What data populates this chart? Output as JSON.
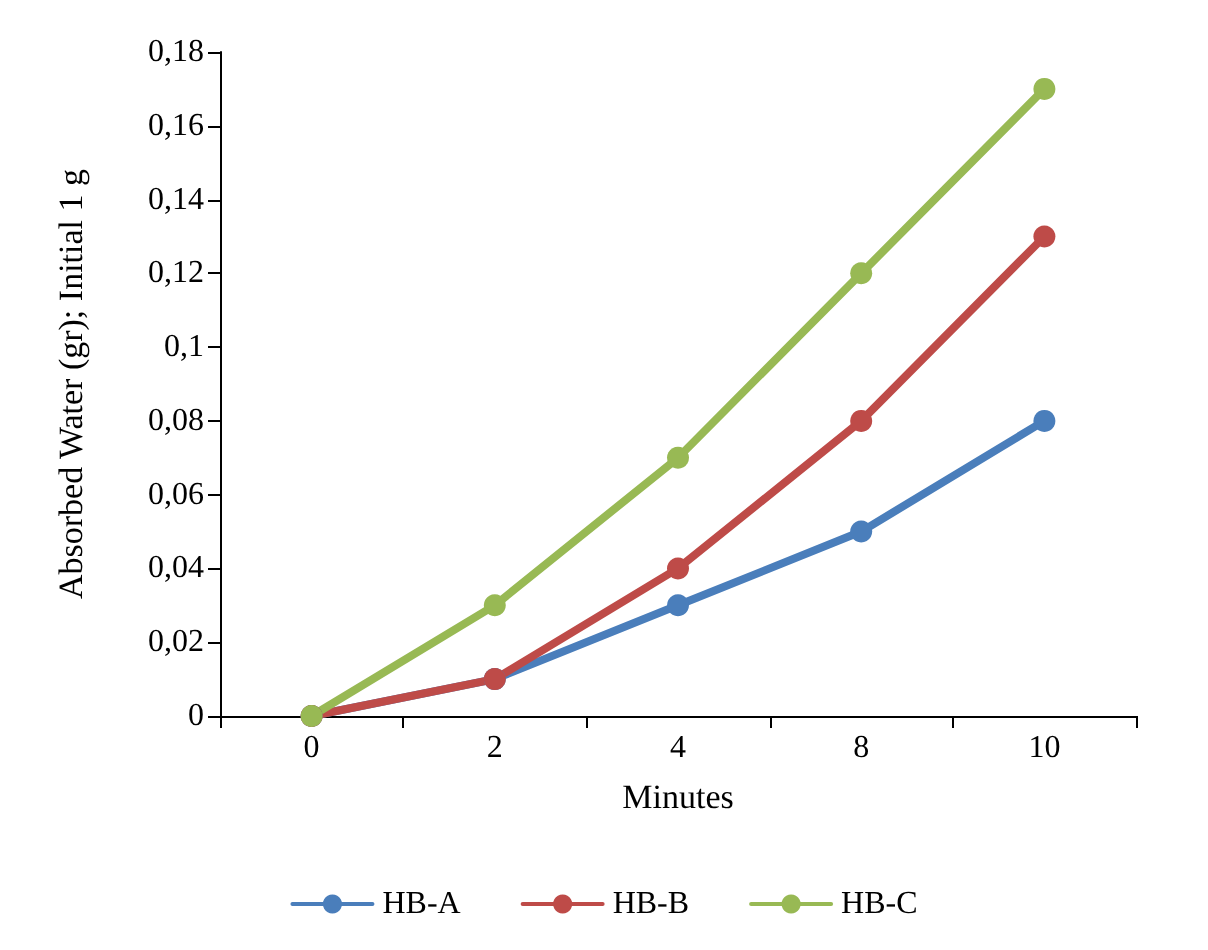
{
  "chart_data": {
    "type": "line",
    "xlabel": "Minutes",
    "ylabel": "Absorbed Water (gr); Initial 1 g",
    "categories": [
      "0",
      "2",
      "4",
      "8",
      "10"
    ],
    "series": [
      {
        "name": "HB-A",
        "color": "#4a7ebb",
        "values": [
          0,
          0.01,
          0.03,
          0.05,
          0.08
        ]
      },
      {
        "name": "HB-B",
        "color": "#be4b48",
        "values": [
          0,
          0.01,
          0.04,
          0.08,
          0.13
        ]
      },
      {
        "name": "HB-C",
        "color": "#98b954",
        "values": [
          0,
          0.03,
          0.07,
          0.12,
          0.17
        ]
      }
    ],
    "ylim": [
      0,
      0.18
    ],
    "yticks": [
      0,
      {
        "value": 0.02,
        "label": "0,02"
      },
      {
        "value": 0.04,
        "label": "0,04"
      },
      {
        "value": 0.06,
        "label": "0,06"
      },
      {
        "value": 0.08,
        "label": "0,08"
      },
      {
        "value": 0.1,
        "label": "0,1"
      },
      {
        "value": 0.12,
        "label": "0,12"
      },
      {
        "value": 0.14,
        "label": "0,14"
      },
      {
        "value": 0.16,
        "label": "0,16"
      },
      {
        "value": 0.18,
        "label": "0,18"
      }
    ],
    "grid": false,
    "legend": "bottom",
    "marker": "circle",
    "line_style": "solid"
  }
}
